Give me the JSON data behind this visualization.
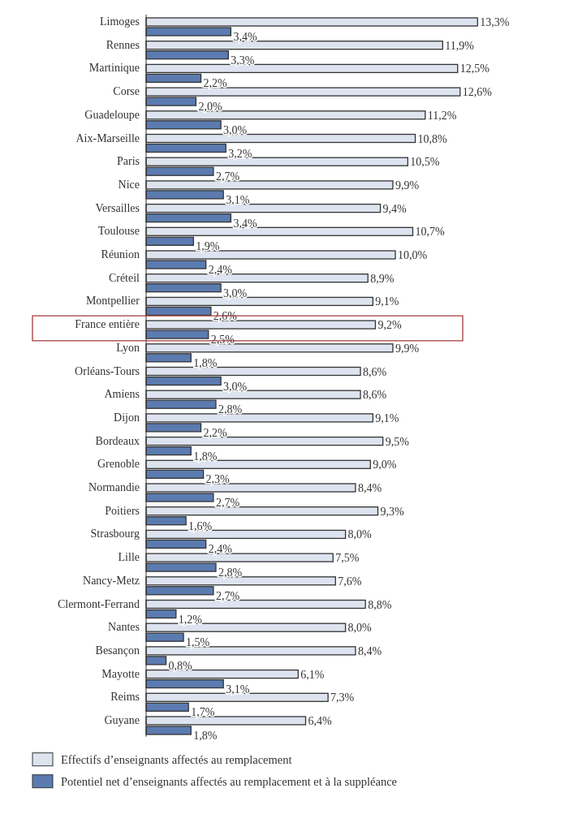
{
  "chart_data": {
    "type": "bar",
    "orientation": "horizontal",
    "categories": [
      "Limoges",
      "Rennes",
      "Martinique",
      "Corse",
      "Guadeloupe",
      "Aix-Marseille",
      "Paris",
      "Nice",
      "Versailles",
      "Toulouse",
      "Réunion",
      "Créteil",
      "Montpellier",
      "France entière",
      "Lyon",
      "Orléans-Tours",
      "Amiens",
      "Dijon",
      "Bordeaux",
      "Grenoble",
      "Normandie",
      "Poitiers",
      "Strasbourg",
      "Lille",
      "Nancy-Metz",
      "Clermont-Ferrand",
      "Nantes",
      "Besançon",
      "Mayotte",
      "Reims",
      "Guyane"
    ],
    "series": [
      {
        "name": "Effectifs d’enseignants affectés au remplacement",
        "color": "#dde3ef",
        "values": [
          13.3,
          11.9,
          12.5,
          12.6,
          11.2,
          10.8,
          10.5,
          9.9,
          9.4,
          10.7,
          10.0,
          8.9,
          9.1,
          9.2,
          9.9,
          8.6,
          8.6,
          9.1,
          9.5,
          9.0,
          8.4,
          9.3,
          8.0,
          7.5,
          7.6,
          8.8,
          8.0,
          8.4,
          6.1,
          7.3,
          6.4
        ],
        "value_labels": [
          "13,3%",
          "11,9%",
          "12,5%",
          "12,6%",
          "11,2%",
          "10,8%",
          "10,5%",
          "9,9%",
          "9,4%",
          "10,7%",
          "10,0%",
          "8,9%",
          "9,1%",
          "9,2%",
          "9,9%",
          "8,6%",
          "8,6%",
          "9,1%",
          "9,5%",
          "9,0%",
          "8,4%",
          "9,3%",
          "8,0%",
          "7,5%",
          "7,6%",
          "8,8%",
          "8,0%",
          "8,4%",
          "6,1%",
          "7,3%",
          "6,4%"
        ]
      },
      {
        "name": "Potentiel net d’enseignants affectés au remplacement et à la suppléance",
        "color": "#5b7bb0",
        "values": [
          3.4,
          3.3,
          2.2,
          2.0,
          3.0,
          3.2,
          2.7,
          3.1,
          3.4,
          1.9,
          2.4,
          3.0,
          2.6,
          2.5,
          1.8,
          3.0,
          2.8,
          2.2,
          1.8,
          2.3,
          2.7,
          1.6,
          2.4,
          2.8,
          2.7,
          1.2,
          1.5,
          0.8,
          3.1,
          1.7,
          1.8
        ],
        "value_labels": [
          "3,4%",
          "3,3%",
          "2,2%",
          "2,0%",
          "3,0%",
          "3,2%",
          "2,7%",
          "3,1%",
          "3,4%",
          "1,9%",
          "2,4%",
          "3,0%",
          "2,6%",
          "2,5%",
          "1,8%",
          "3,0%",
          "2,8%",
          "2,2%",
          "1,8%",
          "2,3%",
          "2,7%",
          "1,6%",
          "2,4%",
          "2,8%",
          "2,7%",
          "1,2%",
          "1,5%",
          "0,8%",
          "3,1%",
          "1,7%",
          "1,8%"
        ]
      }
    ],
    "legend": "bottom"
  }
}
